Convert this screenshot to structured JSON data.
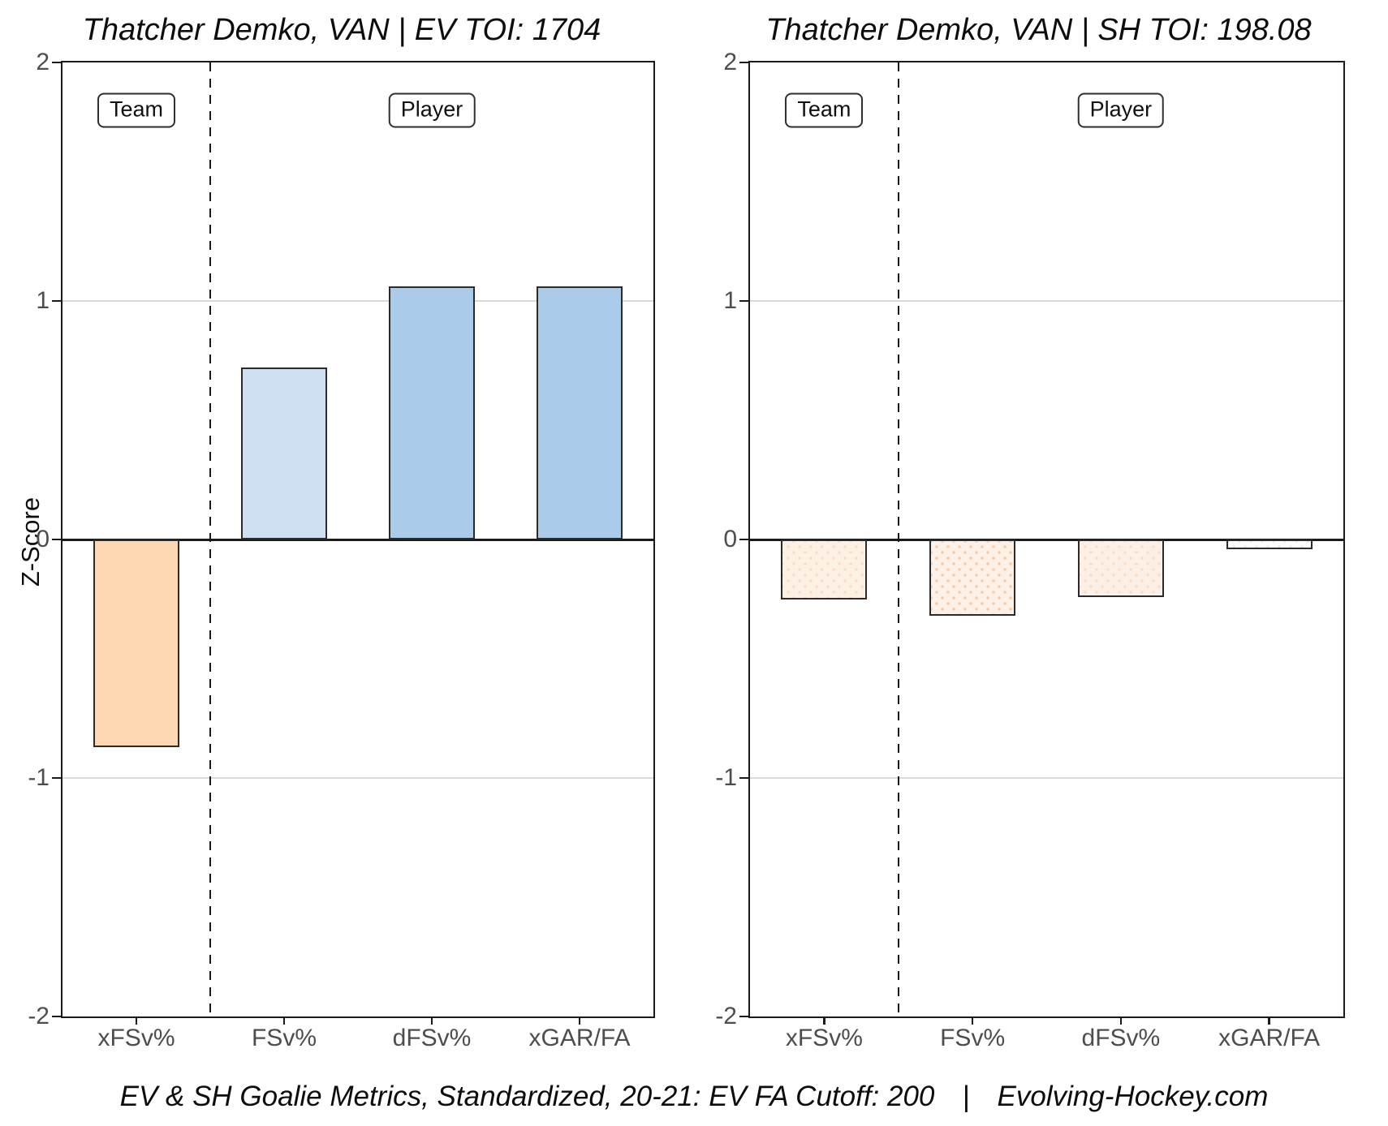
{
  "figure": {
    "ylabel": "Z-Score",
    "caption": {
      "text": "EV & SH Goalie Metrics, Standardized, 20-21: EV FA Cutoff: 200",
      "divider": "|",
      "source": "Evolving-Hockey.com"
    },
    "colors": {
      "axis": "#1a1a1a",
      "tick_label": "#4d4d4d",
      "gridline": "#d9d9d9",
      "bar_border": "#2b2b2b"
    }
  },
  "chart_data": [
    {
      "type": "bar",
      "title": "Thatcher Demko, VAN | EV TOI: 1704",
      "categories": [
        "xFSv%",
        "FSv%",
        "dFSv%",
        "xGAR/FA"
      ],
      "values": [
        -0.87,
        0.72,
        1.06,
        1.06
      ],
      "bar_fills": [
        "#fdd8b2",
        "#cddff0",
        "#abcce8",
        "#abcce8"
      ],
      "bar_dots": [
        null,
        null,
        null,
        null
      ],
      "ylabel": "Z-Score",
      "ylim": [
        -2,
        2
      ],
      "yticks": [
        "2",
        "1",
        "0",
        "-1",
        "-2"
      ],
      "grid_y": [
        1,
        -1
      ],
      "divider_x": 1.5,
      "group_labels": [
        {
          "label": "Team",
          "category_index": 0,
          "y": 1.8
        },
        {
          "label": "Player",
          "category_index": 2,
          "y": 1.8
        }
      ]
    },
    {
      "type": "bar",
      "title": "Thatcher Demko, VAN | SH TOI: 198.08",
      "categories": [
        "xFSv%",
        "FSv%",
        "dFSv%",
        "xGAR/FA"
      ],
      "values": [
        -0.25,
        -0.32,
        -0.24,
        -0.04
      ],
      "bar_fills": [
        "#fdf0e4",
        "#fdf1e7",
        "#fcf0e6",
        "#fefcfa"
      ],
      "bar_dots": [
        "#f9dcc3",
        "#f8c8a0",
        "#f9dcc3",
        "#efe9e4"
      ],
      "ylabel": "",
      "ylim": [
        -2,
        2
      ],
      "yticks": [
        "2",
        "1",
        "0",
        "-1",
        "-2"
      ],
      "grid_y": [
        1,
        -1
      ],
      "divider_x": 1.5,
      "group_labels": [
        {
          "label": "Team",
          "category_index": 0,
          "y": 1.8
        },
        {
          "label": "Player",
          "category_index": 2,
          "y": 1.8
        }
      ]
    }
  ]
}
